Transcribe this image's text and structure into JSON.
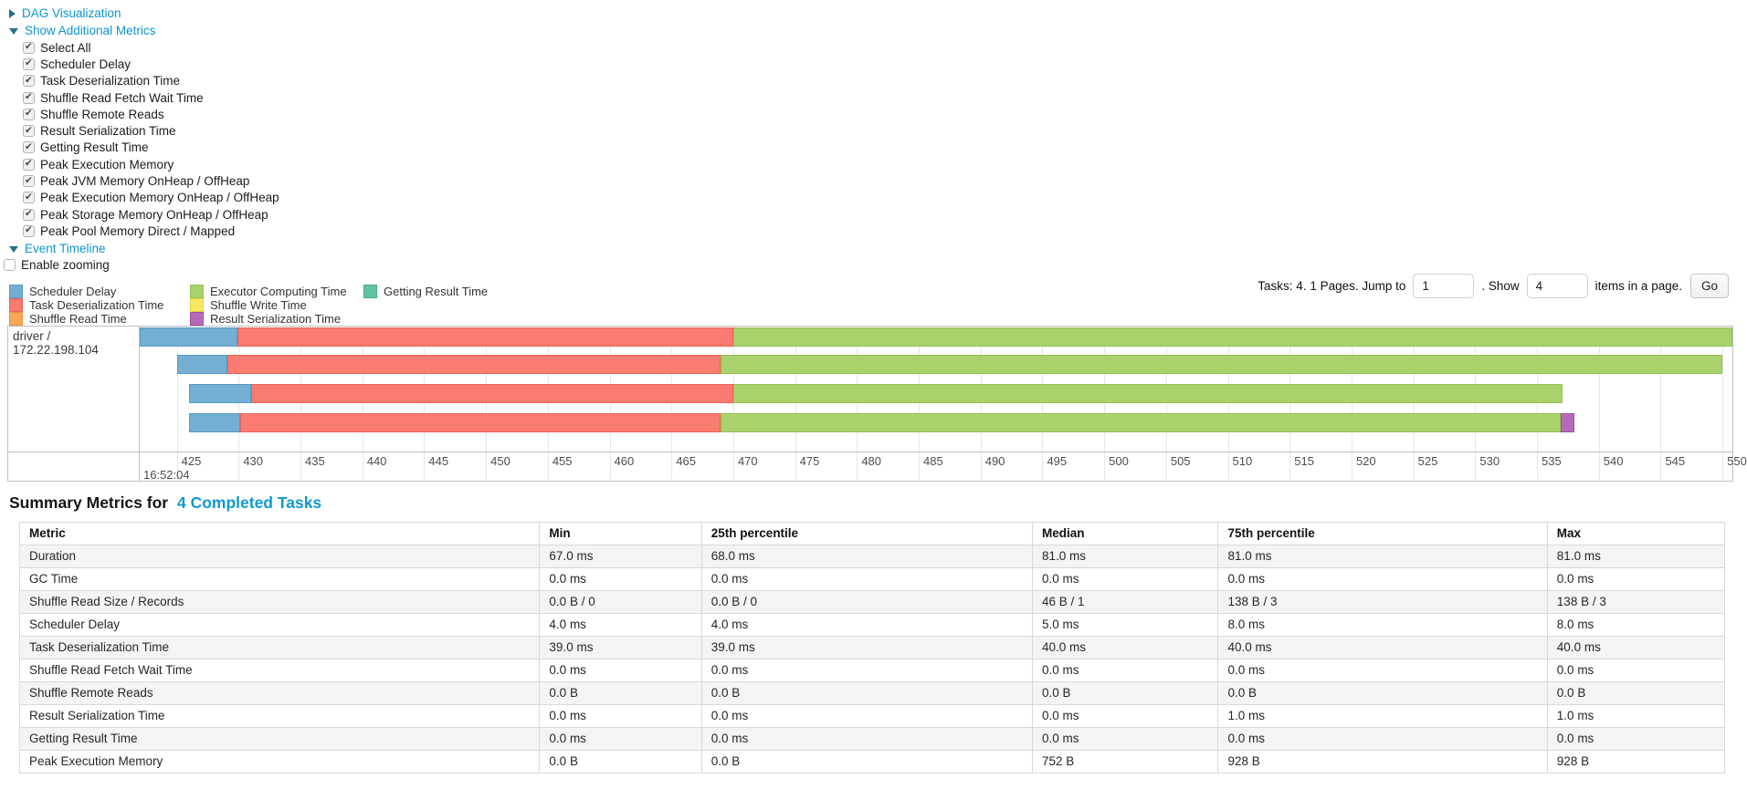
{
  "controls": {
    "dag_label": "DAG Visualization",
    "metrics_label": "Show Additional Metrics",
    "metrics_items": [
      "Select All",
      "Scheduler Delay",
      "Task Deserialization Time",
      "Shuffle Read Fetch Wait Time",
      "Shuffle Remote Reads",
      "Result Serialization Time",
      "Getting Result Time",
      "Peak Execution Memory",
      "Peak JVM Memory OnHeap / OffHeap",
      "Peak Execution Memory OnHeap / OffHeap",
      "Peak Storage Memory OnHeap / OffHeap",
      "Peak Pool Memory Direct / Mapped"
    ],
    "event_timeline_label": "Event Timeline",
    "enable_zooming_label": "Enable zooming",
    "enable_zooming_checked": false
  },
  "legend": {
    "columns": [
      [
        {
          "label": "Scheduler Delay",
          "color": "blue"
        },
        {
          "label": "Task Deserialization Time",
          "color": "red"
        },
        {
          "label": "Shuffle Read Time",
          "color": "orange"
        }
      ],
      [
        {
          "label": "Executor Computing Time",
          "color": "green"
        },
        {
          "label": "Shuffle Write Time",
          "color": "yellow"
        },
        {
          "label": "Result Serialization Time",
          "color": "purple"
        }
      ],
      [
        {
          "label": "Getting Result Time",
          "color": "teal"
        }
      ]
    ]
  },
  "pagination": {
    "tasks_text": "Tasks: 4. 1 Pages. Jump to",
    "jump_value": "1",
    "show_text": ". Show",
    "show_value": "4",
    "items_text": "items in a page.",
    "go_label": "Go"
  },
  "chart_data": {
    "type": "timeline",
    "group_label": "driver / 172.22.198.104",
    "x_domain": [
      422,
      550.8
    ],
    "ticks": [
      425,
      430,
      435,
      440,
      445,
      450,
      455,
      460,
      465,
      470,
      475,
      480,
      485,
      490,
      495,
      500,
      505,
      510,
      515,
      520,
      525,
      530,
      535,
      540,
      545,
      550
    ],
    "major_tick_label": "16:52:04",
    "tasks": [
      {
        "segments": [
          {
            "metric": "Scheduler Delay",
            "start": 422.0,
            "end": 429.9,
            "color": "blue"
          },
          {
            "metric": "Task Deserialization Time",
            "start": 429.9,
            "end": 470.0,
            "color": "red"
          },
          {
            "metric": "Executor Computing Time",
            "start": 470.0,
            "end": 550.8,
            "color": "green"
          }
        ]
      },
      {
        "segments": [
          {
            "metric": "Scheduler Delay",
            "start": 425.0,
            "end": 429.1,
            "color": "blue"
          },
          {
            "metric": "Task Deserialization Time",
            "start": 429.1,
            "end": 469.0,
            "color": "red"
          },
          {
            "metric": "Executor Computing Time",
            "start": 469.0,
            "end": 550.0,
            "color": "green"
          }
        ]
      },
      {
        "segments": [
          {
            "metric": "Scheduler Delay",
            "start": 426.0,
            "end": 431.0,
            "color": "blue"
          },
          {
            "metric": "Task Deserialization Time",
            "start": 431.0,
            "end": 470.0,
            "color": "red"
          },
          {
            "metric": "Executor Computing Time",
            "start": 470.0,
            "end": 537.1,
            "color": "green"
          }
        ]
      },
      {
        "segments": [
          {
            "metric": "Scheduler Delay",
            "start": 426.0,
            "end": 430.1,
            "color": "blue"
          },
          {
            "metric": "Task Deserialization Time",
            "start": 430.1,
            "end": 469.0,
            "color": "red"
          },
          {
            "metric": "Executor Computing Time",
            "start": 469.0,
            "end": 536.9,
            "color": "green"
          },
          {
            "metric": "Result Serialization Time",
            "start": 536.9,
            "end": 538.0,
            "color": "purple"
          }
        ]
      }
    ]
  },
  "summary": {
    "title_prefix": "Summary Metrics for",
    "title_link": "4 Completed Tasks",
    "table": {
      "col_widths": [
        "30.5%",
        "9.5%",
        "19.4%",
        "10.9%",
        "19.3%",
        "10.4%"
      ],
      "columns": [
        "Metric",
        "Min",
        "25th percentile",
        "Median",
        "75th percentile",
        "Max"
      ],
      "rows": [
        [
          "Duration",
          "67.0 ms",
          "68.0 ms",
          "81.0 ms",
          "81.0 ms",
          "81.0 ms"
        ],
        [
          "GC Time",
          "0.0 ms",
          "0.0 ms",
          "0.0 ms",
          "0.0 ms",
          "0.0 ms"
        ],
        [
          "Shuffle Read Size / Records",
          "0.0 B / 0",
          "0.0 B / 0",
          "46 B / 1",
          "138 B / 3",
          "138 B / 3"
        ],
        [
          "Scheduler Delay",
          "4.0 ms",
          "4.0 ms",
          "5.0 ms",
          "8.0 ms",
          "8.0 ms"
        ],
        [
          "Task Deserialization Time",
          "39.0 ms",
          "39.0 ms",
          "40.0 ms",
          "40.0 ms",
          "40.0 ms"
        ],
        [
          "Shuffle Read Fetch Wait Time",
          "0.0 ms",
          "0.0 ms",
          "0.0 ms",
          "0.0 ms",
          "0.0 ms"
        ],
        [
          "Shuffle Remote Reads",
          "0.0 B",
          "0.0 B",
          "0.0 B",
          "0.0 B",
          "0.0 B"
        ],
        [
          "Result Serialization Time",
          "0.0 ms",
          "0.0 ms",
          "0.0 ms",
          "1.0 ms",
          "1.0 ms"
        ],
        [
          "Getting Result Time",
          "0.0 ms",
          "0.0 ms",
          "0.0 ms",
          "0.0 ms",
          "0.0 ms"
        ],
        [
          "Peak Execution Memory",
          "0.0 B",
          "0.0 B",
          "752 B",
          "928 B",
          "928 B"
        ]
      ]
    }
  }
}
